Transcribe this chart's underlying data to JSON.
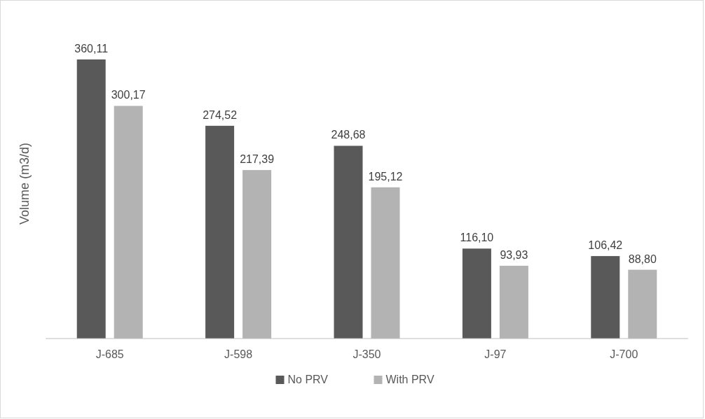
{
  "chart_data": {
    "type": "bar",
    "ylabel": "Volume (m3/d)",
    "categories": [
      "J-685",
      "J-598",
      "J-350",
      "J-97",
      "J-700"
    ],
    "tick_labels": "x",
    "legend": "bottom",
    "series": [
      {
        "name": "No PRV",
        "color": "#595959",
        "values": [
          360.11,
          274.52,
          248.68,
          116.1,
          106.42
        ],
        "value_labels": [
          "360,11",
          "274,52",
          "248,68",
          "116,10",
          "106,42"
        ]
      },
      {
        "name": "With PRV",
        "color": "#b3b3b3",
        "values": [
          300.17,
          217.39,
          195.12,
          93.93,
          88.8
        ],
        "value_labels": [
          "300,17",
          "217,39",
          "195,12",
          "93,93",
          "88,80"
        ]
      }
    ]
  }
}
